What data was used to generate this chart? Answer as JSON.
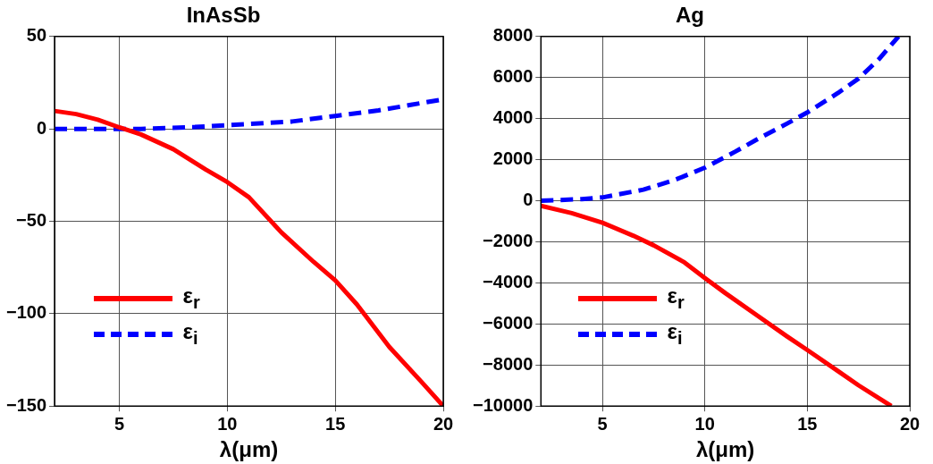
{
  "chart_data": [
    {
      "type": "line",
      "title": "InAsSb",
      "xlabel": "λ(μm)",
      "xlim": [
        2,
        20
      ],
      "xticks": [
        5,
        10,
        15,
        20
      ],
      "ylim": [
        -150,
        50
      ],
      "yticks": [
        -150,
        -100,
        -50,
        0,
        50
      ],
      "grid": true,
      "legend": "bottom left",
      "line_style": "solid",
      "marker": "none",
      "series": [
        {
          "name": "ε$_{r}$",
          "color": "#ff0000",
          "x": [
            2,
            3,
            4,
            5,
            6,
            7.5,
            9,
            10,
            11,
            12.5,
            14,
            15,
            16,
            17.5,
            19,
            20
          ],
          "values": [
            9.7,
            8,
            5,
            0.8,
            -3,
            -11,
            -22,
            -28.8,
            -37,
            -56,
            -72,
            -82,
            -95,
            -118,
            -137,
            -150
          ]
        },
        {
          "name": "ε$_{i}$",
          "color": "#0000ff",
          "line_style": "dashed",
          "x": [
            2,
            4,
            6,
            8.5,
            10,
            13,
            15,
            17,
            18.5,
            20
          ],
          "values": [
            0,
            0,
            0,
            1,
            2,
            4,
            7,
            10,
            13,
            16
          ]
        }
      ]
    },
    {
      "type": "line",
      "title": "Ag",
      "xlabel": "λ(μm)",
      "xlim": [
        2,
        20
      ],
      "xticks": [
        5,
        10,
        15,
        20
      ],
      "ylim": [
        -10000,
        8000
      ],
      "yticks": [
        -10000,
        -8000,
        -6000,
        -4000,
        -2000,
        0,
        2000,
        4000,
        6000,
        8000
      ],
      "grid": true,
      "legend": "bottom left",
      "line_style": "solid",
      "marker": "none",
      "series": [
        {
          "name": "ε$_{r}$",
          "color": "#ff0000",
          "x": [
            2,
            3.5,
            5,
            6.5,
            7.5,
            9,
            10,
            11,
            12.5,
            14,
            15,
            16.5,
            17.5,
            19.1
          ],
          "values": [
            -250,
            -600,
            -1070,
            -1700,
            -2170,
            -3000,
            -3760,
            -4500,
            -5550,
            -6600,
            -7270,
            -8300,
            -8990,
            -10000
          ]
        },
        {
          "name": "ε$_{i}$",
          "color": "#0000ff",
          "line_style": "dashed",
          "x": [
            2,
            4,
            5,
            7,
            8.5,
            10,
            11.5,
            12.5,
            14,
            15,
            16.5,
            17.5,
            18.5,
            19.45
          ],
          "values": [
            0,
            80,
            160,
            540,
            1000,
            1610,
            2400,
            2960,
            3750,
            4300,
            5250,
            5950,
            6900,
            8000
          ]
        }
      ]
    }
  ]
}
